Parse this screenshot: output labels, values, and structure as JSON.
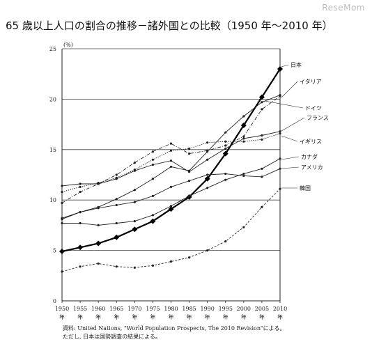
{
  "header": {
    "logo": "ReseMom",
    "title": "65 歳以上人口の割合の推移－諸外国との比較（1950 年～2010 年）"
  },
  "notes": {
    "source": "資料: United Nations, \"World Population Prospects, The 2010 Revision\"による。",
    "caveat": "ただし, 日本は国勢調査の結果による。"
  },
  "chart_data": {
    "type": "line",
    "title": "65 歳以上人口の割合の推移－諸外国との比較（1950 年～2010 年）",
    "unit_label": "(%)",
    "x": [
      1950,
      1955,
      1960,
      1965,
      1970,
      1975,
      1980,
      1985,
      1990,
      1995,
      2000,
      2005,
      2010
    ],
    "x_tick_labels": [
      "1950",
      "1955",
      "1960",
      "1965",
      "1970",
      "1975",
      "1980",
      "1985",
      "1990",
      "1995",
      "2000",
      "2005",
      "2010"
    ],
    "x_year_suffix": "年",
    "yticks": [
      0,
      5,
      10,
      15,
      20,
      25
    ],
    "ylim": [
      0,
      25
    ],
    "xlim": [
      1950,
      2010
    ],
    "grid": "horizontal",
    "series": [
      {
        "name": "日本",
        "style": "bold-diamond",
        "values": [
          4.9,
          5.3,
          5.7,
          6.3,
          7.1,
          7.9,
          9.1,
          10.3,
          12.1,
          14.6,
          17.4,
          20.2,
          23.0
        ]
      },
      {
        "name": "イタリア",
        "style": "solid-dot",
        "values": [
          8.1,
          8.8,
          9.3,
          10.1,
          11.0,
          12.1,
          13.3,
          12.9,
          14.8,
          16.7,
          18.3,
          19.7,
          20.4
        ]
      },
      {
        "name": "ドイツ",
        "style": "dashdot-dot",
        "values": [
          9.7,
          10.8,
          11.6,
          12.5,
          13.7,
          14.8,
          15.6,
          14.6,
          14.9,
          15.4,
          16.3,
          19.0,
          20.3
        ]
      },
      {
        "name": "フランス",
        "style": "solid-dot",
        "values": [
          11.4,
          11.6,
          11.6,
          12.1,
          12.9,
          13.5,
          13.9,
          12.8,
          14.0,
          15.1,
          16.1,
          16.4,
          16.8
        ]
      },
      {
        "name": "イギリス",
        "style": "dotted-dot",
        "values": [
          10.8,
          11.3,
          11.7,
          12.2,
          13.0,
          14.0,
          14.9,
          15.1,
          15.7,
          15.8,
          15.8,
          16.0,
          16.6
        ]
      },
      {
        "name": "カナダ",
        "style": "solid-dot",
        "values": [
          7.7,
          7.7,
          7.5,
          7.7,
          7.9,
          8.5,
          9.4,
          10.4,
          11.2,
          12.0,
          12.6,
          13.1,
          14.1
        ]
      },
      {
        "name": "アメリカ",
        "style": "solid-dot",
        "values": [
          8.2,
          8.8,
          9.2,
          9.5,
          9.8,
          10.4,
          11.3,
          11.9,
          12.5,
          12.6,
          12.4,
          12.3,
          13.1
        ]
      },
      {
        "name": "韓国",
        "style": "dashed-dot",
        "values": [
          2.9,
          3.4,
          3.7,
          3.4,
          3.3,
          3.5,
          3.9,
          4.3,
          5.0,
          5.9,
          7.3,
          9.3,
          11.1
        ]
      }
    ]
  }
}
